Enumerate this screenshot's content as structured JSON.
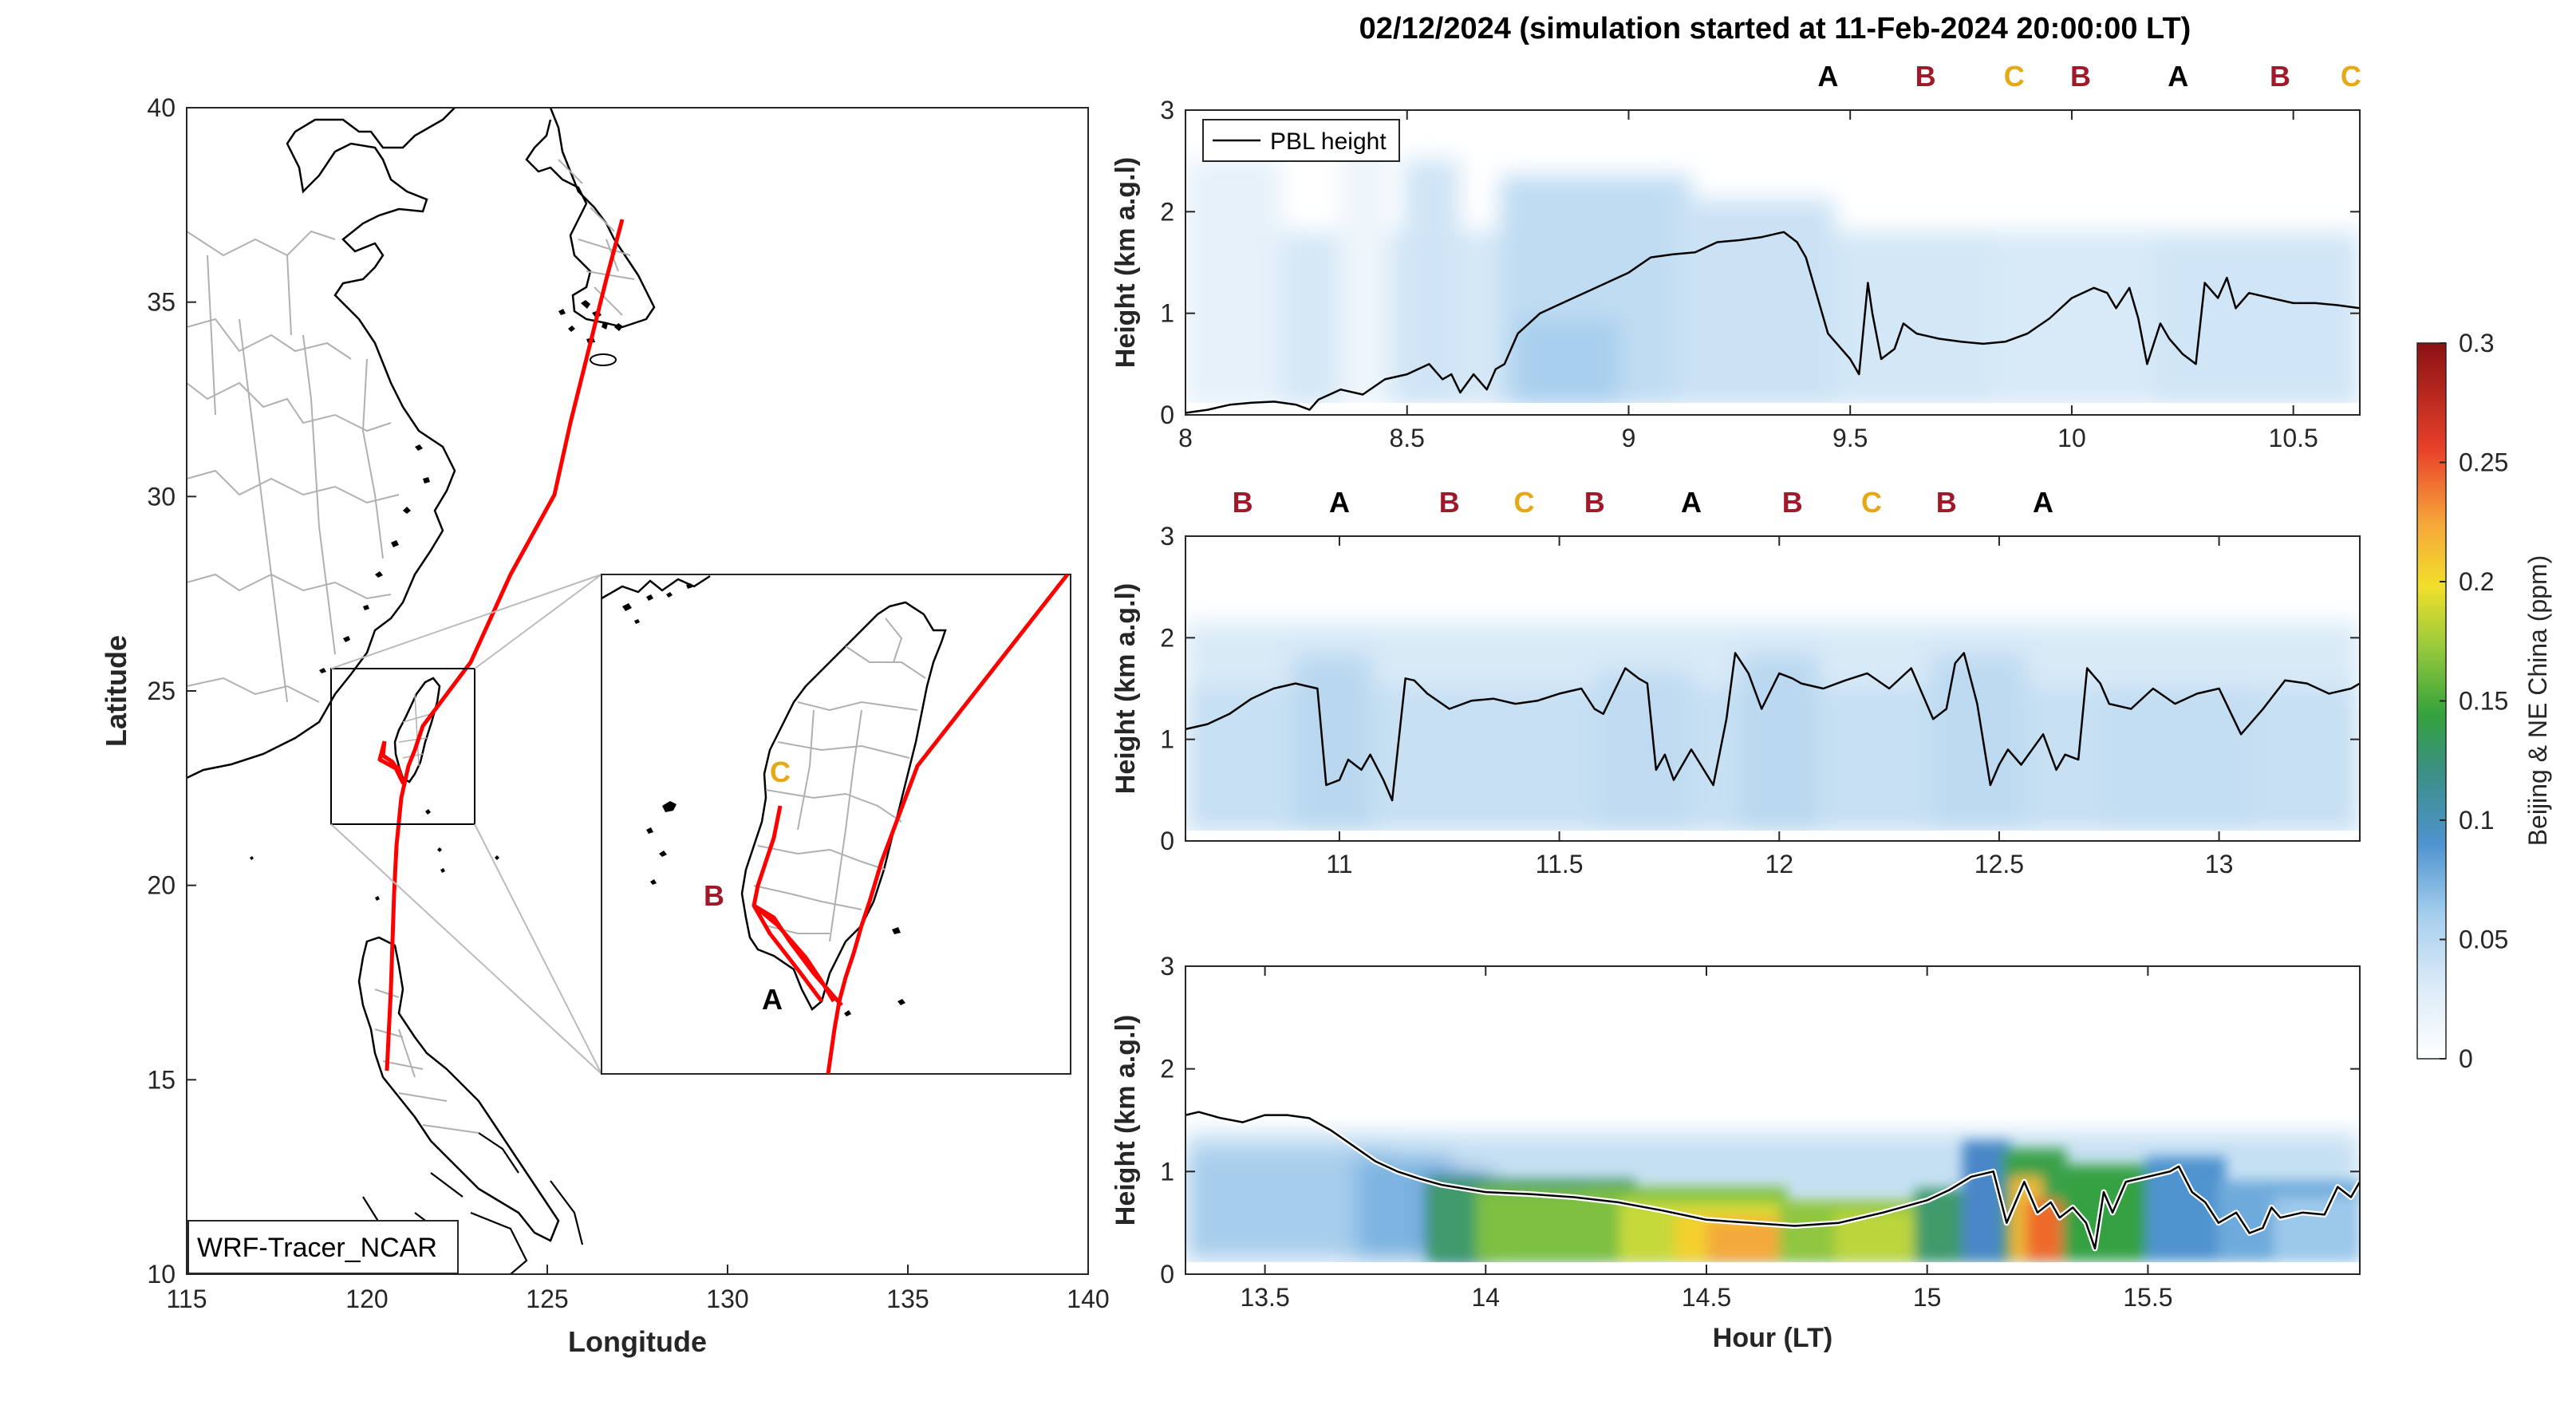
{
  "figure_title": "02/12/2024 (simulation started at 11-Feb-2024 20:00:00 LT)",
  "map": {
    "xlabel": "Longitude",
    "ylabel": "Latitude",
    "xticks": [
      "115",
      "120",
      "125",
      "130",
      "135",
      "140"
    ],
    "yticks": [
      "10",
      "15",
      "20",
      "25",
      "30",
      "35",
      "40"
    ],
    "model_label": "WRF-Tracer_NCAR",
    "track_color": "#ff0000",
    "site_labels": [
      {
        "text": "C",
        "color": "#e6a817"
      },
      {
        "text": "B",
        "color": "#a0192a"
      },
      {
        "text": "A",
        "color": "#000000"
      }
    ]
  },
  "colorbar": {
    "label": "Beijing & NE China (ppm)",
    "ticks": [
      "0",
      "0.05",
      "0.1",
      "0.15",
      "0.2",
      "0.25",
      "0.3"
    ]
  },
  "chart_data": [
    {
      "type": "heatmap",
      "panel": "top",
      "ylabel": "Height (km a.g.l)",
      "xlabel": "",
      "xlim": [
        8,
        10.65
      ],
      "ylim": [
        0,
        3
      ],
      "xticks": [
        "8",
        "8.5",
        "9",
        "9.5",
        "10",
        "10.5"
      ],
      "yticks": [
        "0",
        "1",
        "2",
        "3"
      ],
      "legend": "PBL height",
      "site_markers": [
        {
          "x": 9.45,
          "label": "A",
          "color": "#000000"
        },
        {
          "x": 9.67,
          "label": "B",
          "color": "#a0192a"
        },
        {
          "x": 9.87,
          "label": "C",
          "color": "#e6a817"
        },
        {
          "x": 10.02,
          "label": "B",
          "color": "#a0192a"
        },
        {
          "x": 10.24,
          "label": "A",
          "color": "#000000"
        },
        {
          "x": 10.47,
          "label": "B",
          "color": "#a0192a"
        },
        {
          "x": 10.63,
          "label": "C",
          "color": "#e6a817"
        }
      ],
      "series": [
        {
          "name": "PBL height",
          "x": [
            8,
            8.05,
            8.1,
            8.15,
            8.2,
            8.25,
            8.28,
            8.3,
            8.35,
            8.4,
            8.45,
            8.5,
            8.55,
            8.58,
            8.6,
            8.62,
            8.65,
            8.68,
            8.7,
            8.72,
            8.75,
            8.8,
            8.85,
            8.9,
            8.95,
            9,
            9.05,
            9.1,
            9.15,
            9.2,
            9.25,
            9.3,
            9.35,
            9.38,
            9.4,
            9.45,
            9.5,
            9.52,
            9.54,
            9.55,
            9.57,
            9.6,
            9.62,
            9.65,
            9.7,
            9.75,
            9.8,
            9.85,
            9.9,
            9.95,
            10,
            10.05,
            10.08,
            10.1,
            10.13,
            10.15,
            10.17,
            10.2,
            10.22,
            10.25,
            10.28,
            10.3,
            10.33,
            10.35,
            10.37,
            10.4,
            10.45,
            10.5,
            10.55,
            10.6,
            10.65
          ],
          "y": [
            0.02,
            0.05,
            0.1,
            0.12,
            0.13,
            0.1,
            0.05,
            0.15,
            0.25,
            0.2,
            0.35,
            0.4,
            0.5,
            0.35,
            0.4,
            0.22,
            0.4,
            0.25,
            0.45,
            0.5,
            0.8,
            1.0,
            1.1,
            1.2,
            1.3,
            1.4,
            1.55,
            1.58,
            1.6,
            1.7,
            1.72,
            1.75,
            1.8,
            1.7,
            1.55,
            0.8,
            0.55,
            0.4,
            1.3,
            1.0,
            0.55,
            0.65,
            0.9,
            0.8,
            0.75,
            0.72,
            0.7,
            0.72,
            0.8,
            0.95,
            1.15,
            1.25,
            1.2,
            1.05,
            1.25,
            0.95,
            0.5,
            0.9,
            0.75,
            0.6,
            0.5,
            1.3,
            1.15,
            1.35,
            1.05,
            1.2,
            1.15,
            1.1,
            1.1,
            1.08,
            1.05
          ]
        }
      ]
    },
    {
      "type": "heatmap",
      "panel": "middle",
      "ylabel": "Height (km a.g.l)",
      "xlabel": "",
      "xlim": [
        10.65,
        13.32
      ],
      "ylim": [
        0,
        3
      ],
      "xticks": [
        "11",
        "11.5",
        "12",
        "12.5",
        "13"
      ],
      "yticks": [
        "0",
        "1",
        "2",
        "3"
      ],
      "site_markers": [
        {
          "x": 10.78,
          "label": "B",
          "color": "#a0192a"
        },
        {
          "x": 11.0,
          "label": "A",
          "color": "#000000"
        },
        {
          "x": 11.25,
          "label": "B",
          "color": "#a0192a"
        },
        {
          "x": 11.42,
          "label": "C",
          "color": "#e6a817"
        },
        {
          "x": 11.58,
          "label": "B",
          "color": "#a0192a"
        },
        {
          "x": 11.8,
          "label": "A",
          "color": "#000000"
        },
        {
          "x": 12.03,
          "label": "B",
          "color": "#a0192a"
        },
        {
          "x": 12.21,
          "label": "C",
          "color": "#e6a817"
        },
        {
          "x": 12.38,
          "label": "B",
          "color": "#a0192a"
        },
        {
          "x": 12.6,
          "label": "A",
          "color": "#000000"
        }
      ],
      "series": [
        {
          "name": "PBL height",
          "x": [
            10.65,
            10.7,
            10.75,
            10.8,
            10.85,
            10.9,
            10.95,
            10.97,
            11,
            11.02,
            11.05,
            11.07,
            11.1,
            11.12,
            11.15,
            11.17,
            11.2,
            11.25,
            11.3,
            11.35,
            11.4,
            11.45,
            11.5,
            11.55,
            11.58,
            11.6,
            11.65,
            11.68,
            11.7,
            11.72,
            11.74,
            11.76,
            11.8,
            11.85,
            11.88,
            11.9,
            11.93,
            11.96,
            12,
            12.03,
            12.05,
            12.1,
            12.15,
            12.2,
            12.25,
            12.3,
            12.35,
            12.38,
            12.4,
            12.42,
            12.45,
            12.48,
            12.5,
            12.52,
            12.55,
            12.6,
            12.63,
            12.65,
            12.68,
            12.7,
            12.73,
            12.75,
            12.8,
            12.85,
            12.9,
            12.95,
            13,
            13.05,
            13.08,
            13.1,
            13.15,
            13.2,
            13.25,
            13.3,
            13.32
          ],
          "y": [
            1.1,
            1.15,
            1.25,
            1.4,
            1.5,
            1.55,
            1.5,
            0.55,
            0.6,
            0.8,
            0.7,
            0.85,
            0.6,
            0.4,
            1.6,
            1.58,
            1.45,
            1.3,
            1.38,
            1.4,
            1.35,
            1.38,
            1.45,
            1.5,
            1.3,
            1.25,
            1.7,
            1.6,
            1.55,
            0.7,
            0.85,
            0.6,
            0.9,
            0.55,
            1.2,
            1.85,
            1.65,
            1.3,
            1.65,
            1.6,
            1.55,
            1.5,
            1.58,
            1.65,
            1.5,
            1.7,
            1.2,
            1.3,
            1.75,
            1.85,
            1.35,
            0.55,
            0.75,
            0.9,
            0.75,
            1.05,
            0.7,
            0.85,
            0.8,
            1.7,
            1.55,
            1.35,
            1.3,
            1.5,
            1.35,
            1.45,
            1.5,
            1.05,
            1.2,
            1.3,
            1.58,
            1.55,
            1.45,
            1.5,
            1.55
          ]
        }
      ]
    },
    {
      "type": "heatmap",
      "panel": "bottom",
      "ylabel": "Height (km a.g.l)",
      "xlabel": "Hour (LT)",
      "xlim": [
        13.32,
        15.98
      ],
      "ylim": [
        0,
        3
      ],
      "xticks": [
        "13.5",
        "14",
        "14.5",
        "15",
        "15.5"
      ],
      "yticks": [
        "0",
        "1",
        "2",
        "3"
      ],
      "series": [
        {
          "name": "PBL height",
          "x": [
            13.32,
            13.35,
            13.4,
            13.45,
            13.5,
            13.55,
            13.6,
            13.65,
            13.7,
            13.75,
            13.8,
            13.85,
            13.9,
            14,
            14.1,
            14.2,
            14.3,
            14.4,
            14.5,
            14.6,
            14.7,
            14.8,
            14.9,
            15,
            15.05,
            15.1,
            15.15,
            15.18,
            15.2,
            15.22,
            15.25,
            15.28,
            15.3,
            15.33,
            15.36,
            15.38,
            15.4,
            15.42,
            15.45,
            15.5,
            15.55,
            15.57,
            15.6,
            15.63,
            15.66,
            15.7,
            15.73,
            15.76,
            15.78,
            15.8,
            15.85,
            15.9,
            15.93,
            15.96,
            15.98
          ],
          "y": [
            1.55,
            1.58,
            1.52,
            1.48,
            1.55,
            1.55,
            1.52,
            1.4,
            1.25,
            1.1,
            1.0,
            0.93,
            0.87,
            0.8,
            0.78,
            0.75,
            0.7,
            0.62,
            0.53,
            0.5,
            0.47,
            0.5,
            0.6,
            0.72,
            0.82,
            0.95,
            1.0,
            0.5,
            0.7,
            0.9,
            0.6,
            0.7,
            0.55,
            0.65,
            0.5,
            0.25,
            0.8,
            0.6,
            0.9,
            0.95,
            1.0,
            1.05,
            0.8,
            0.7,
            0.5,
            0.6,
            0.4,
            0.45,
            0.65,
            0.55,
            0.6,
            0.58,
            0.85,
            0.75,
            0.9
          ]
        }
      ]
    }
  ]
}
